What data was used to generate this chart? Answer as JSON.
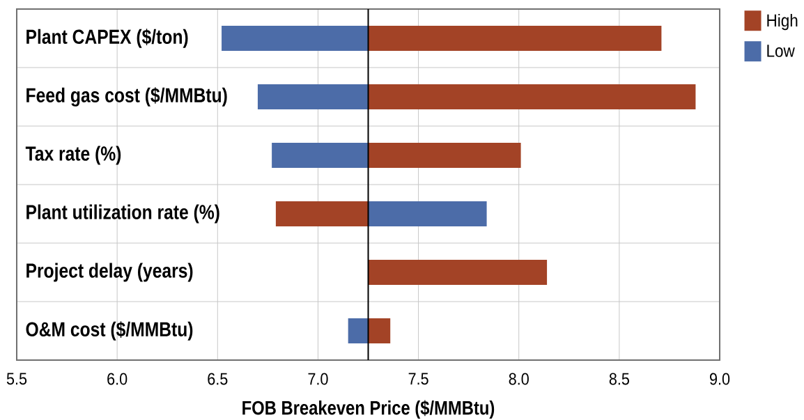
{
  "chart_data": {
    "type": "bar",
    "orientation": "horizontal",
    "xlabel": "FOB Breakeven Price ($/MMBtu)",
    "categories": [
      "Plant CAPEX ($/ton)",
      "Feed gas cost ($/MMBtu)",
      "Tax rate (%)",
      "Plant utilization rate (%)",
      "Project delay (years)",
      "O&M cost ($/MMBtu)"
    ],
    "series": [
      {
        "name": "High",
        "color": "#a34326",
        "base": [
          7.25,
          7.25,
          7.25,
          7.25,
          7.25,
          7.25
        ],
        "values": [
          1.46,
          1.63,
          0.76,
          -0.46,
          0.89,
          0.11
        ]
      },
      {
        "name": "Low",
        "color": "#4c6ca8",
        "base": [
          7.25,
          7.25,
          7.25,
          7.25,
          null,
          7.25
        ],
        "values": [
          -0.73,
          -0.55,
          -0.48,
          0.59,
          null,
          -0.1
        ]
      }
    ],
    "xlim": [
      5.5,
      9.0
    ],
    "xticks": [
      5.5,
      {
        "value": 6,
        "label": "6.0"
      },
      6.5,
      {
        "value": 7,
        "label": "7.0"
      },
      7.5,
      {
        "value": 8,
        "label": "8.0"
      },
      8.5,
      {
        "value": 9,
        "label": "9.0"
      }
    ],
    "grid": true,
    "legend": "top right",
    "ref_lines": [
      {
        "axis": "x",
        "value": 7.25,
        "color": "#000000"
      }
    ]
  }
}
